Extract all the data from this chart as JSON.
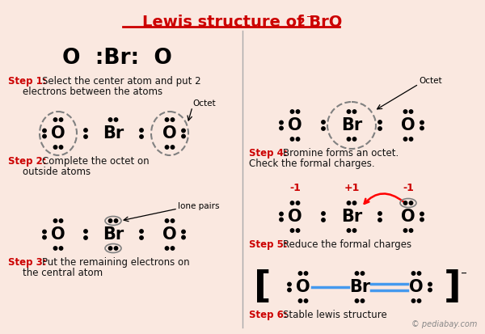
{
  "bg_color": "#FAE8E0",
  "title_color": "#CC0000",
  "step_red": "#CC0000",
  "bond_blue": "#4499EE",
  "text_black": "#111111",
  "gray": "#888888",
  "title_text": "Lewis structure of BrO",
  "title_sub2": "₂",
  "title_minus": "⁻",
  "watermark": "© pediabay.com",
  "step1_desc1": "Select the center atom and put 2",
  "step1_desc2": "electrons between the atoms",
  "step2_desc1": "Complete the octet on",
  "step2_desc2": "outside atoms",
  "step3_desc1": "Put the remaining electrons on",
  "step3_desc2": "the central atom",
  "step4_desc1": "Bromine forms an octet.",
  "step4_desc2": "Check the formal charges.",
  "step5_desc1": "Reduce the formal charges",
  "step6_desc1": "Stable lewis structure"
}
